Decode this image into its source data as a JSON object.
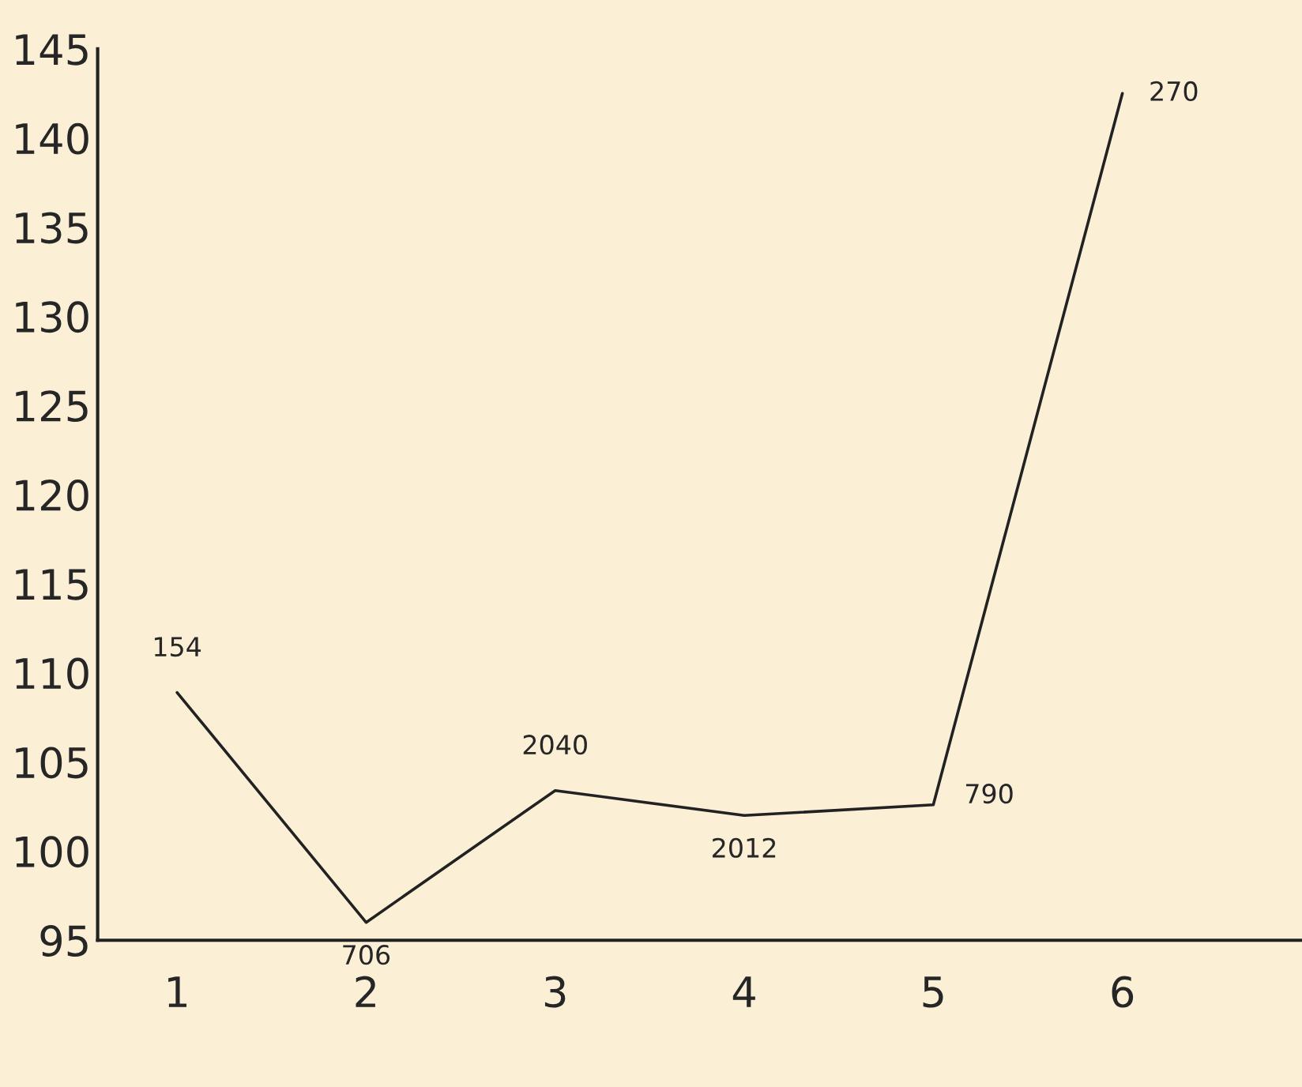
{
  "chart_data": {
    "type": "line",
    "categories": [
      "1",
      "2",
      "3",
      "4",
      "5",
      "6"
    ],
    "series": [
      {
        "color": "#222222",
        "values": [
          108.9,
          96.0,
          103.4,
          102.0,
          102.6,
          142.5
        ]
      }
    ],
    "ylim": [
      95,
      145
    ],
    "yticks": [
      95,
      100,
      105,
      110,
      115,
      120,
      125,
      130,
      135,
      140,
      145
    ],
    "annotations": [
      {
        "text": "154",
        "x": "1",
        "y": 108.9
      },
      {
        "text": "706",
        "x": "2",
        "y": 96.0
      },
      {
        "text": "2040",
        "x": "3",
        "y": 103.4
      },
      {
        "text": "2012",
        "x": "4",
        "y": 102.0
      },
      {
        "text": "790",
        "x": "5",
        "y": 102.6
      },
      {
        "text": "270",
        "x": "6",
        "y": 142.5
      }
    ],
    "grid": false,
    "legend": false,
    "marker": "none",
    "line_style": "solid"
  }
}
